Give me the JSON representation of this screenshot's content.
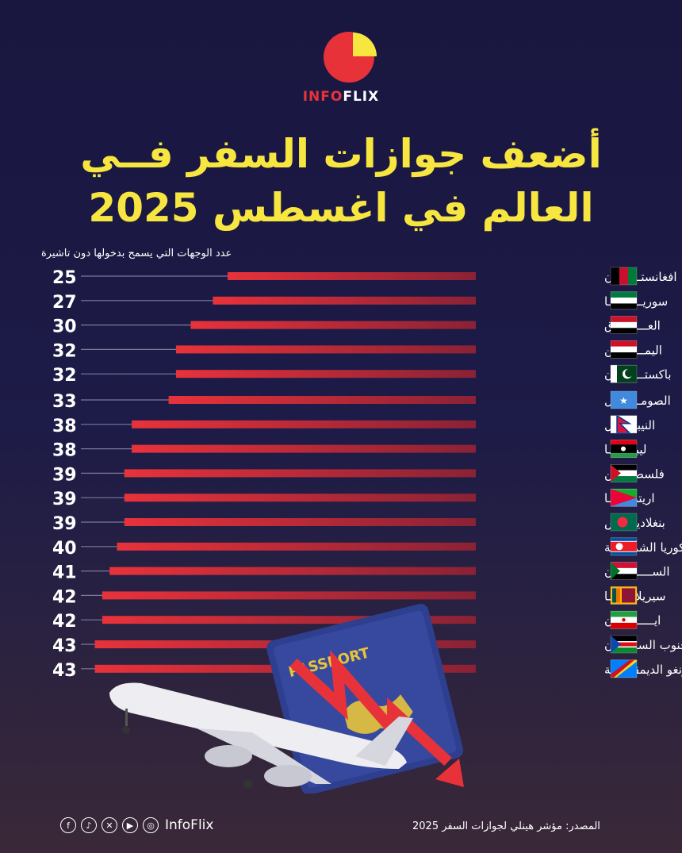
{
  "brand": {
    "name_part1": "INFO",
    "name_part2": "FLIX",
    "logo_icon": "pie-chart-logo-icon"
  },
  "header": {
    "title_line1": "أضعف جوازات السفر فــي",
    "title_line2": "العالم في  اغسطس 2025"
  },
  "chart_data": {
    "type": "bar",
    "orientation": "horizontal",
    "subtitle": "عدد الوجهات التي يسمح بدخولها دون تاشيرة",
    "categories": [
      "افغانستـــــــان",
      "سوريــــــــــا",
      "العـــــــراق",
      "اليمـــــــــن",
      "باكستــــــــان",
      "الصومـــــــال",
      "النيبــــــال",
      "ليبيـــــــا",
      "فلسطيـــــن",
      "اريتريــــــا",
      "بنغلاديـــــش",
      "كوريا الشماليـــة",
      "الســـــــودان",
      "سيريلانكـــــا",
      "ايـــــــــران",
      "جنوب الســـودان",
      "الكونغو الديمقراطية"
    ],
    "values": [
      25,
      27,
      30,
      32,
      32,
      33,
      38,
      38,
      39,
      39,
      39,
      40,
      41,
      42,
      42,
      43,
      43
    ],
    "flags": [
      "afghanistan-flag-icon",
      "syria-flag-icon",
      "iraq-flag-icon",
      "yemen-flag-icon",
      "pakistan-flag-icon",
      "somalia-flag-icon",
      "nepal-flag-icon",
      "libya-flag-icon",
      "palestine-flag-icon",
      "eritrea-flag-icon",
      "bangladesh-flag-icon",
      "north-korea-flag-icon",
      "sudan-flag-icon",
      "sri-lanka-flag-icon",
      "iran-flag-icon",
      "south-sudan-flag-icon",
      "dr-congo-flag-icon"
    ],
    "bar_color": "#e8323a",
    "value_color": "#ffffff",
    "grid": false
  },
  "illustration": {
    "passport_label": "PASSPORT"
  },
  "footer": {
    "handle": "InfoFlix",
    "social_icons": [
      "facebook-icon",
      "tiktok-icon",
      "x-icon",
      "youtube-icon",
      "instagram-icon"
    ],
    "source": "المصدر: مؤشر هينلي لجوازات السفر 2025"
  },
  "colors": {
    "title": "#f7e640",
    "accent": "#e8323a",
    "background": "#1b1942"
  }
}
